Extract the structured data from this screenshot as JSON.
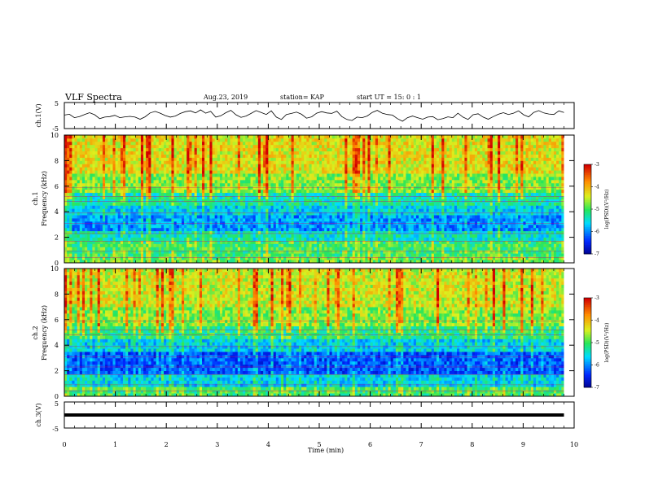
{
  "header": {
    "title": "VLF Spectra",
    "date": "Aug.23, 2019",
    "station": "station= KAP",
    "start": "start  UT =   15: 0  : 1"
  },
  "chart_data": [
    {
      "type": "line",
      "ylabel": "ch.1(V)",
      "ylim": [
        -5,
        5
      ],
      "yticks": [
        "5",
        "-5"
      ],
      "x_range": [
        0,
        10
      ],
      "color": "#000000",
      "series": [
        {
          "values": [
            0.2,
            0.5,
            -0.8,
            -0.4,
            0.4,
            1.1,
            0.3,
            -1.2,
            -0.6,
            -0.4,
            0.1,
            -0.8,
            -0.5,
            -0.3,
            -0.6,
            -1.4,
            -0.5,
            1.0,
            1.6,
            0.9,
            0.0,
            -0.6,
            -0.2,
            0.8,
            1.5,
            1.8,
            1.0,
            2.2,
            0.9,
            1.6,
            -0.6,
            -0.1,
            1.1,
            2.0,
            0.3,
            -0.7,
            -0.2,
            0.8,
            1.9,
            1.2,
            0.4,
            1.8,
            -0.6,
            -1.5,
            0.4,
            0.8,
            1.3,
            0.5,
            -1.0,
            -0.5,
            0.9,
            1.5,
            1.0,
            0.8,
            1.7,
            -0.4,
            -1.5,
            -1.9,
            -0.6,
            -0.8,
            -0.2,
            1.2,
            2.0,
            0.9,
            0.4,
            0.2,
            -1.2,
            -2.2,
            -0.8,
            -0.2,
            -0.8,
            -1.4,
            -0.6,
            -0.4,
            -1.6,
            -1.2,
            -0.5,
            -0.8,
            0.9,
            -0.6,
            -1.5,
            0.3,
            0.7,
            -0.6,
            -1.4,
            -0.4,
            0.5,
            1.1,
            0.4,
            0.9,
            1.8,
            0.3,
            -0.5,
            1.2,
            1.9,
            1.0,
            0.6,
            0.4,
            1.8,
            1.2
          ]
        }
      ]
    },
    {
      "type": "heatmap",
      "ylabel": "ch.1\nFrequency (kHz)",
      "ylim": [
        0,
        10
      ],
      "yticks": [
        "0",
        "2",
        "4",
        "6",
        "8",
        "10"
      ],
      "x_range": [
        0,
        10
      ],
      "colorbar": {
        "label": "log(PSD)(V²/Hz)",
        "range": [
          -7,
          -3
        ],
        "ticks": [
          "-3",
          "-4",
          "-5",
          "-6",
          "-7"
        ]
      },
      "bands": [
        {
          "from": 0.0,
          "to": 0.6,
          "level": -4.8
        },
        {
          "from": 0.6,
          "to": 1.8,
          "level": -5.0
        },
        {
          "from": 1.8,
          "to": 2.4,
          "level": -5.4
        },
        {
          "from": 2.4,
          "to": 3.8,
          "level": -5.9
        },
        {
          "from": 3.8,
          "to": 4.6,
          "level": -5.6
        },
        {
          "from": 4.6,
          "to": 5.5,
          "level": -5.3
        },
        {
          "from": 5.5,
          "to": 7.0,
          "level": -4.7
        },
        {
          "from": 7.0,
          "to": 10.0,
          "level": -4.3
        }
      ]
    },
    {
      "type": "heatmap",
      "ylabel": "ch.2\nFrequency (kHz)",
      "ylim": [
        0,
        10
      ],
      "yticks": [
        "0",
        "2",
        "4",
        "6",
        "8",
        "10"
      ],
      "x_range": [
        0,
        10
      ],
      "colorbar": {
        "label": "log(PSD)(V²/Hz)",
        "range": [
          -7,
          -3
        ],
        "ticks": [
          "-3",
          "-4",
          "-5",
          "-6",
          "-7"
        ]
      },
      "bands": [
        {
          "from": 0.0,
          "to": 0.8,
          "level": -5.0
        },
        {
          "from": 0.8,
          "to": 1.8,
          "level": -5.6
        },
        {
          "from": 1.8,
          "to": 3.4,
          "level": -6.2
        },
        {
          "from": 3.4,
          "to": 4.4,
          "level": -5.6
        },
        {
          "from": 4.4,
          "to": 5.6,
          "level": -5.1
        },
        {
          "from": 5.6,
          "to": 7.0,
          "level": -4.7
        },
        {
          "from": 7.0,
          "to": 10.0,
          "level": -4.4
        }
      ]
    },
    {
      "type": "line",
      "ylabel": "ch.3(V)",
      "ylim": [
        -5,
        5
      ],
      "yticks": [
        "5",
        "-5"
      ],
      "x_range": [
        0,
        10
      ],
      "xlabel": "Time (min)",
      "xticks": [
        "0",
        "1",
        "2",
        "3",
        "4",
        "5",
        "6",
        "7",
        "8",
        "9",
        "10"
      ],
      "color": "#000000",
      "series": [
        {
          "values": [
            0,
            0
          ]
        }
      ]
    }
  ]
}
